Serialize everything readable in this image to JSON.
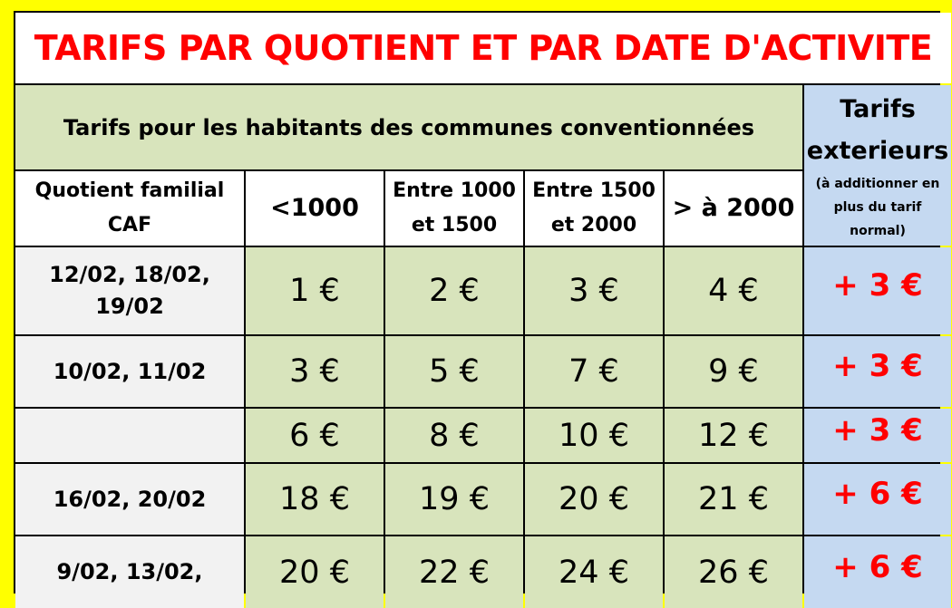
{
  "title": "TARIFS PAR QUOTIENT ET PAR DATE D'ACTIVITE",
  "subtitle": "Tarifs pour les habitants des communes conventionnées",
  "exterior": {
    "title_line1": "Tarifs",
    "title_line2": "exterieurs",
    "note_line1": "(à additionner en",
    "note_line2": "plus du tarif",
    "note_line3": "normal)"
  },
  "headers": {
    "qf_line1": "Quotient familial",
    "qf_line2": "CAF",
    "cols": [
      [
        "<1000",
        ""
      ],
      [
        "Entre 1000",
        "et 1500"
      ],
      [
        "Entre 1500",
        "et 2000"
      ],
      [
        "> à 2000",
        ""
      ]
    ]
  },
  "rows": [
    {
      "date_line1": "12/02, 18/02,",
      "date_line2": "19/02",
      "prices": [
        "1 €",
        "2 €",
        "3 €",
        "4 €"
      ],
      "ext": "+ 3 €"
    },
    {
      "date_line1": "10/02, 11/02",
      "date_line2": "",
      "prices": [
        "3 €",
        "5 €",
        "7 €",
        "9 €"
      ],
      "ext": "+ 3 €"
    },
    {
      "date_line1": "",
      "date_line2": "",
      "prices": [
        "6 €",
        "8 €",
        "10 €",
        "12 €"
      ],
      "ext": "+ 3 €"
    },
    {
      "date_line1": "16/02, 20/02",
      "date_line2": "",
      "prices": [
        "18 €",
        "19 €",
        "20 €",
        "21 €"
      ],
      "ext": "+ 6 €"
    },
    {
      "date_line1": "9/02, 13/02,",
      "date_line2": "",
      "prices": [
        "20 €",
        "22 €",
        "24 €",
        "26 €"
      ],
      "ext": "+ 6 €"
    }
  ],
  "colors": {
    "border": "#ffff00",
    "title": "#ff0000",
    "green": "#d8e4bc",
    "blue": "#c5d9f1"
  }
}
